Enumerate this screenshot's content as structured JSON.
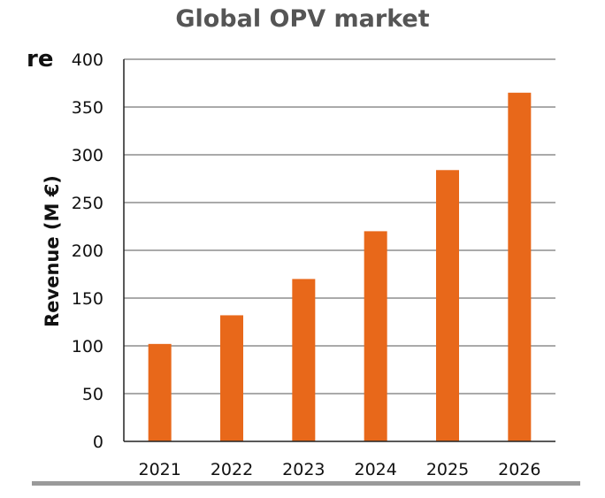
{
  "header": {
    "title": "Global OPV market",
    "cropped_text": "re"
  },
  "colors": {
    "bar": "#E8681A",
    "grid": "#555555",
    "title": "#555555",
    "rule": "#9a9a9a"
  },
  "chart_data": {
    "type": "bar",
    "title": "Global OPV market",
    "xlabel": "",
    "ylabel": "Revenue (M €)",
    "categories": [
      "2021",
      "2022",
      "2023",
      "2024",
      "2025",
      "2026"
    ],
    "values": [
      102,
      132,
      170,
      220,
      284,
      365
    ],
    "ylim": [
      0,
      400
    ],
    "yticks": [
      0,
      50,
      100,
      150,
      200,
      250,
      300,
      350,
      400
    ],
    "grid": true,
    "legend": "none"
  }
}
